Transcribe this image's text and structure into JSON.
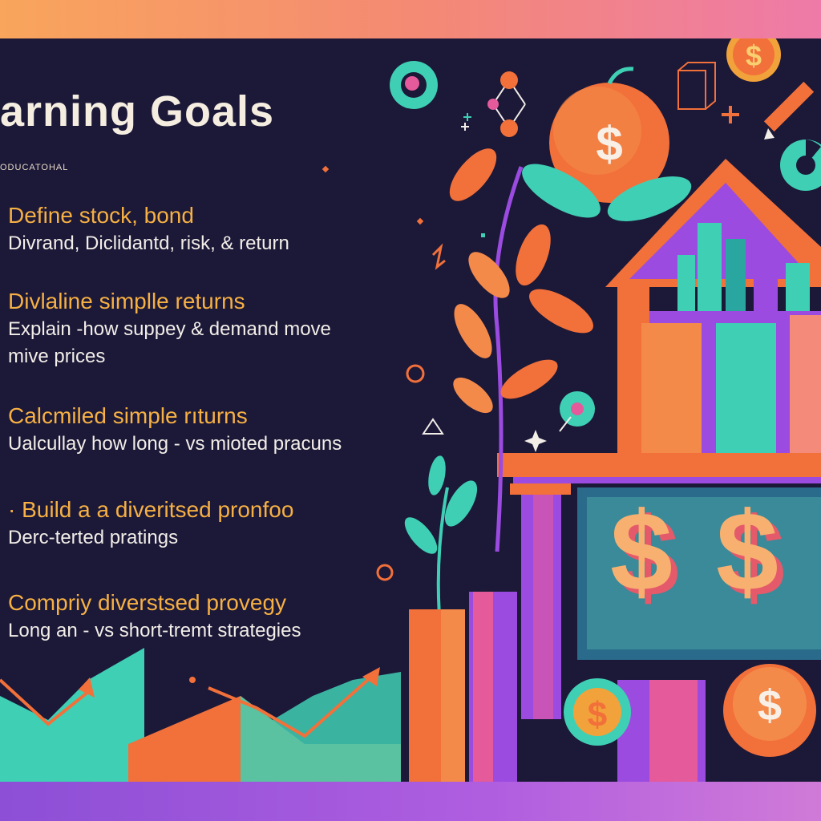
{
  "title": "arning Goals",
  "subtitle": "oducatohal",
  "goals": [
    {
      "heading": "Define stock, bond",
      "detail": "Divrand, Diclidantd, risk, &   return"
    },
    {
      "heading": "Divlaline simplle returns",
      "detail": "Explain -how suppey & demand move",
      "detail2": "mive prices"
    },
    {
      "heading": "Calcmiled simple rıturns",
      "detail": "Ualcullay  how long - vs  mioted pracuns"
    },
    {
      "heading": "· Build a a diveritsed pronfoo",
      "detail": "Derc-terted pratings"
    },
    {
      "heading": "Compriy diverstsed provegy",
      "detail": "Long an - vs short-tremt strategies"
    }
  ],
  "colors": {
    "background": "#1b1838",
    "heading": "#f6b043",
    "text": "#f3eee8",
    "orange": "#f2703a",
    "teal": "#3fcfb4",
    "purple": "#9b4be0",
    "pink": "#e45a9a"
  },
  "icons": [
    "dollar-coin-icon",
    "house-icon",
    "plant-icon",
    "pencil-icon",
    "trend-arrow-icon",
    "bar-chart-icon"
  ]
}
